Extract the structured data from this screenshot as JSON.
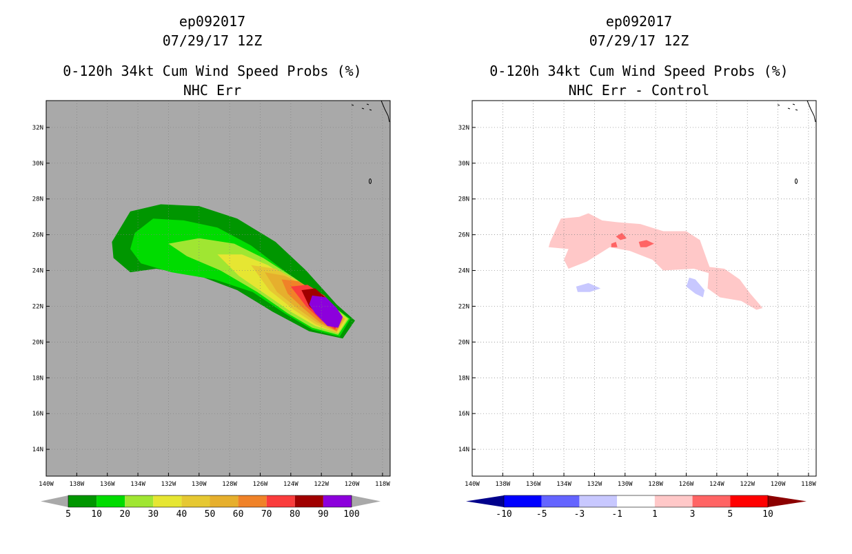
{
  "colors": {
    "left_background": "#a9a9a9",
    "grid": "#7f7f7f"
  },
  "chart_data": [
    {
      "type": "heatmap",
      "storm": "ep092017",
      "cycle": "07/29/17 12Z",
      "title": "0-120h 34kt Cum Wind Speed Probs (%)",
      "subtitle": "NHC Err",
      "units": "%",
      "x_ticks": [
        "140W",
        "138W",
        "136W",
        "134W",
        "132W",
        "130W",
        "128W",
        "126W",
        "124W",
        "122W",
        "120W",
        "118W"
      ],
      "y_ticks": [
        "32N",
        "30N",
        "28N",
        "26N",
        "24N",
        "22N",
        "20N",
        "18N",
        "16N",
        "14N"
      ],
      "xlim": [
        -140,
        -117.5
      ],
      "ylim": [
        12.5,
        33.5
      ],
      "grid": true,
      "colorbar": {
        "labels": [
          "5",
          "10",
          "20",
          "30",
          "40",
          "50",
          "60",
          "70",
          "80",
          "90",
          "100"
        ],
        "colors": [
          "#009600",
          "#00dc00",
          "#a0e632",
          "#e6e632",
          "#e6c832",
          "#e6af2d",
          "#f08228",
          "#fa3c3c",
          "#a00000",
          "#8c00dc"
        ]
      },
      "contour_levels": [
        5,
        10,
        20,
        30,
        40,
        50,
        60,
        70,
        80,
        90
      ],
      "contours": [
        {
          "level": 5,
          "color": "#009600",
          "points": [
            [
              -135.7,
              25.6
            ],
            [
              -134.5,
              27.3
            ],
            [
              -132.5,
              27.7
            ],
            [
              -130,
              27.6
            ],
            [
              -127.5,
              26.9
            ],
            [
              -125,
              25.6
            ],
            [
              -123,
              24
            ],
            [
              -121,
              22.1
            ],
            [
              -119.8,
              21.2
            ],
            [
              -120.6,
              20.2
            ],
            [
              -122.8,
              20.6
            ],
            [
              -125.2,
              21.7
            ],
            [
              -127.5,
              22.9
            ],
            [
              -130,
              23.7
            ],
            [
              -132.8,
              24.1
            ],
            [
              -134.5,
              23.9
            ],
            [
              -135.6,
              24.7
            ]
          ]
        },
        {
          "level": 10,
          "color": "#00dc00",
          "points": [
            [
              -134.2,
              26.1
            ],
            [
              -133,
              26.9
            ],
            [
              -131,
              26.8
            ],
            [
              -128.8,
              26.4
            ],
            [
              -126.6,
              25.4
            ],
            [
              -124.6,
              24.1
            ],
            [
              -122.4,
              22.7
            ],
            [
              -120.1,
              21.3
            ],
            [
              -120.8,
              20.3
            ],
            [
              -122.6,
              20.7
            ],
            [
              -124.4,
              21.6
            ],
            [
              -126.5,
              22.8
            ],
            [
              -129,
              23.5
            ],
            [
              -131.8,
              23.9
            ],
            [
              -133.8,
              24.4
            ],
            [
              -134.5,
              25.2
            ]
          ]
        },
        {
          "level": 20,
          "color": "#a0e632",
          "points": [
            [
              -132,
              25.5
            ],
            [
              -130,
              25.8
            ],
            [
              -127.7,
              25.5
            ],
            [
              -125.8,
              24.7
            ],
            [
              -123.8,
              23.6
            ],
            [
              -121.8,
              22.4
            ],
            [
              -120.2,
              21.3
            ],
            [
              -120.9,
              20.4
            ],
            [
              -122.6,
              20.8
            ],
            [
              -124.2,
              21.6
            ],
            [
              -126.2,
              22.8
            ],
            [
              -128.6,
              24
            ],
            [
              -130.8,
              24.8
            ]
          ]
        },
        {
          "level": 30,
          "color": "#e6e632",
          "points": [
            [
              -128.8,
              24.9
            ],
            [
              -127.2,
              24.9
            ],
            [
              -125.5,
              24.3
            ],
            [
              -123.6,
              23.3
            ],
            [
              -121.7,
              22.2
            ],
            [
              -120.3,
              21.3
            ],
            [
              -120.9,
              20.5
            ],
            [
              -122.4,
              20.9
            ],
            [
              -124,
              21.7
            ],
            [
              -125.7,
              22.7
            ],
            [
              -127.4,
              23.7
            ]
          ]
        },
        {
          "level": 40,
          "color": "#e6c832",
          "points": [
            [
              -126.6,
              24.3
            ],
            [
              -125,
              24.1
            ],
            [
              -123.3,
              23.3
            ],
            [
              -121.6,
              22.2
            ],
            [
              -120.4,
              21.3
            ],
            [
              -121,
              20.5
            ],
            [
              -122.4,
              21
            ],
            [
              -123.8,
              21.8
            ],
            [
              -125.4,
              22.9
            ]
          ]
        },
        {
          "level": 50,
          "color": "#e6af2d",
          "points": [
            [
              -125.7,
              23.9
            ],
            [
              -124.4,
              23.7
            ],
            [
              -122.9,
              23.1
            ],
            [
              -121.5,
              22.1
            ],
            [
              -120.5,
              21.3
            ],
            [
              -121,
              20.6
            ],
            [
              -122.3,
              21.1
            ],
            [
              -123.6,
              21.9
            ],
            [
              -124.9,
              22.8
            ]
          ]
        },
        {
          "level": 60,
          "color": "#f08228",
          "points": [
            [
              -124.6,
              23.5
            ],
            [
              -123.5,
              23.4
            ],
            [
              -122.3,
              22.8
            ],
            [
              -121.2,
              21.9
            ],
            [
              -120.6,
              21.3
            ],
            [
              -121,
              20.6
            ],
            [
              -122.1,
              21.1
            ],
            [
              -123.2,
              21.9
            ],
            [
              -124.2,
              22.7
            ]
          ]
        },
        {
          "level": 70,
          "color": "#fa3c3c",
          "points": [
            [
              -124,
              23.1
            ],
            [
              -122.9,
              23.2
            ],
            [
              -121.8,
              22.6
            ],
            [
              -121,
              21.8
            ],
            [
              -120.7,
              21.3
            ],
            [
              -121.1,
              20.7
            ],
            [
              -122,
              21.2
            ],
            [
              -123,
              22
            ]
          ]
        },
        {
          "level": 80,
          "color": "#a00000",
          "points": [
            [
              -123.3,
              22.9
            ],
            [
              -122.4,
              23
            ],
            [
              -121.6,
              22.4
            ],
            [
              -120.9,
              21.7
            ],
            [
              -120.8,
              21.3
            ],
            [
              -121.1,
              20.8
            ],
            [
              -121.9,
              21.3
            ],
            [
              -122.8,
              22
            ]
          ]
        },
        {
          "level": 90,
          "color": "#8c00dc",
          "points": [
            [
              -122.6,
              22.6
            ],
            [
              -121.7,
              22.5
            ],
            [
              -121,
              21.9
            ],
            [
              -120.6,
              21.4
            ],
            [
              -120.9,
              20.8
            ],
            [
              -121.6,
              20.9
            ],
            [
              -122.4,
              21.6
            ],
            [
              -122.8,
              22.1
            ]
          ]
        }
      ]
    },
    {
      "type": "heatmap",
      "storm": "ep092017",
      "cycle": "07/29/17 12Z",
      "title": "0-120h 34kt Cum Wind Speed Probs (%)",
      "subtitle": "NHC Err - Control",
      "x_ticks": [
        "140W",
        "138W",
        "136W",
        "134W",
        "132W",
        "130W",
        "128W",
        "126W",
        "124W",
        "122W",
        "120W",
        "118W"
      ],
      "y_ticks": [
        "32N",
        "30N",
        "28N",
        "26N",
        "24N",
        "22N",
        "20N",
        "18N",
        "16N",
        "14N"
      ],
      "xlim": [
        -140,
        -117.5
      ],
      "ylim": [
        12.5,
        33.5
      ],
      "grid": true,
      "colorbar": {
        "labels": [
          "-10",
          "-5",
          "-3",
          "-1",
          "1",
          "3",
          "5",
          "10"
        ],
        "colors": [
          "#00008c",
          "#0000ff",
          "#6464ff",
          "#c8c8ff",
          "#ffffff",
          "#ffc8c8",
          "#ff6464",
          "#ff0000",
          "#8c0000"
        ]
      },
      "regions": [
        {
          "value_range": "1 to 3",
          "color": "#ffc8c8",
          "points": [
            [
              -134.9,
              25.6
            ],
            [
              -134.2,
              26.9
            ],
            [
              -133,
              27
            ],
            [
              -132.4,
              27.2
            ],
            [
              -131.5,
              26.8
            ],
            [
              -130.5,
              26.7
            ],
            [
              -129,
              26.6
            ],
            [
              -127.5,
              26.2
            ],
            [
              -126,
              26.2
            ],
            [
              -125.1,
              25.7
            ],
            [
              -124.6,
              24.5
            ],
            [
              -124.3,
              23.8
            ],
            [
              -125.5,
              24.1
            ],
            [
              -127.5,
              24
            ],
            [
              -128.2,
              24.6
            ],
            [
              -129.7,
              25.1
            ],
            [
              -131,
              25.3
            ],
            [
              -132.5,
              24.5
            ],
            [
              -133.7,
              24.1
            ],
            [
              -134,
              24.6
            ],
            [
              -133.7,
              25.2
            ],
            [
              -135,
              25.3
            ]
          ]
        },
        {
          "value_range": "1 to 3",
          "color": "#ffc8c8",
          "points": [
            [
              -124.5,
              24.2
            ],
            [
              -123.5,
              24.1
            ],
            [
              -122.5,
              23.5
            ],
            [
              -121.8,
              22.7
            ],
            [
              -121,
              21.9
            ],
            [
              -121.4,
              21.8
            ],
            [
              -122.4,
              22.3
            ],
            [
              -123.8,
              22.5
            ],
            [
              -124.6,
              23
            ]
          ]
        },
        {
          "value_range": "3 to 5",
          "color": "#ff6464",
          "points": [
            [
              -129.1,
              25.6
            ],
            [
              -128.6,
              25.7
            ],
            [
              -128.1,
              25.5
            ],
            [
              -128.6,
              25.3
            ],
            [
              -129,
              25.3
            ]
          ]
        },
        {
          "value_range": "3 to 5",
          "color": "#ff6464",
          "points": [
            [
              -130.6,
              25.9
            ],
            [
              -130.2,
              26.1
            ],
            [
              -129.9,
              25.8
            ],
            [
              -130.3,
              25.7
            ]
          ]
        },
        {
          "value_range": "3 to 5",
          "color": "#ff6464",
          "points": [
            [
              -130.9,
              25.5
            ],
            [
              -130.6,
              25.6
            ],
            [
              -130.5,
              25.3
            ],
            [
              -130.9,
              25.3
            ]
          ]
        },
        {
          "value_range": "-3 to -1",
          "color": "#c8c8ff",
          "points": [
            [
              -133.2,
              23.1
            ],
            [
              -132.4,
              23.3
            ],
            [
              -131.6,
              23
            ],
            [
              -132.3,
              22.8
            ],
            [
              -133.1,
              22.8
            ]
          ]
        },
        {
          "value_range": "-3 to -1",
          "color": "#c8c8ff",
          "points": [
            [
              -125.8,
              23.6
            ],
            [
              -125.4,
              23.5
            ],
            [
              -124.8,
              22.9
            ],
            [
              -124.9,
              22.5
            ],
            [
              -125.4,
              22.7
            ],
            [
              -126,
              23.1
            ]
          ]
        }
      ]
    }
  ]
}
